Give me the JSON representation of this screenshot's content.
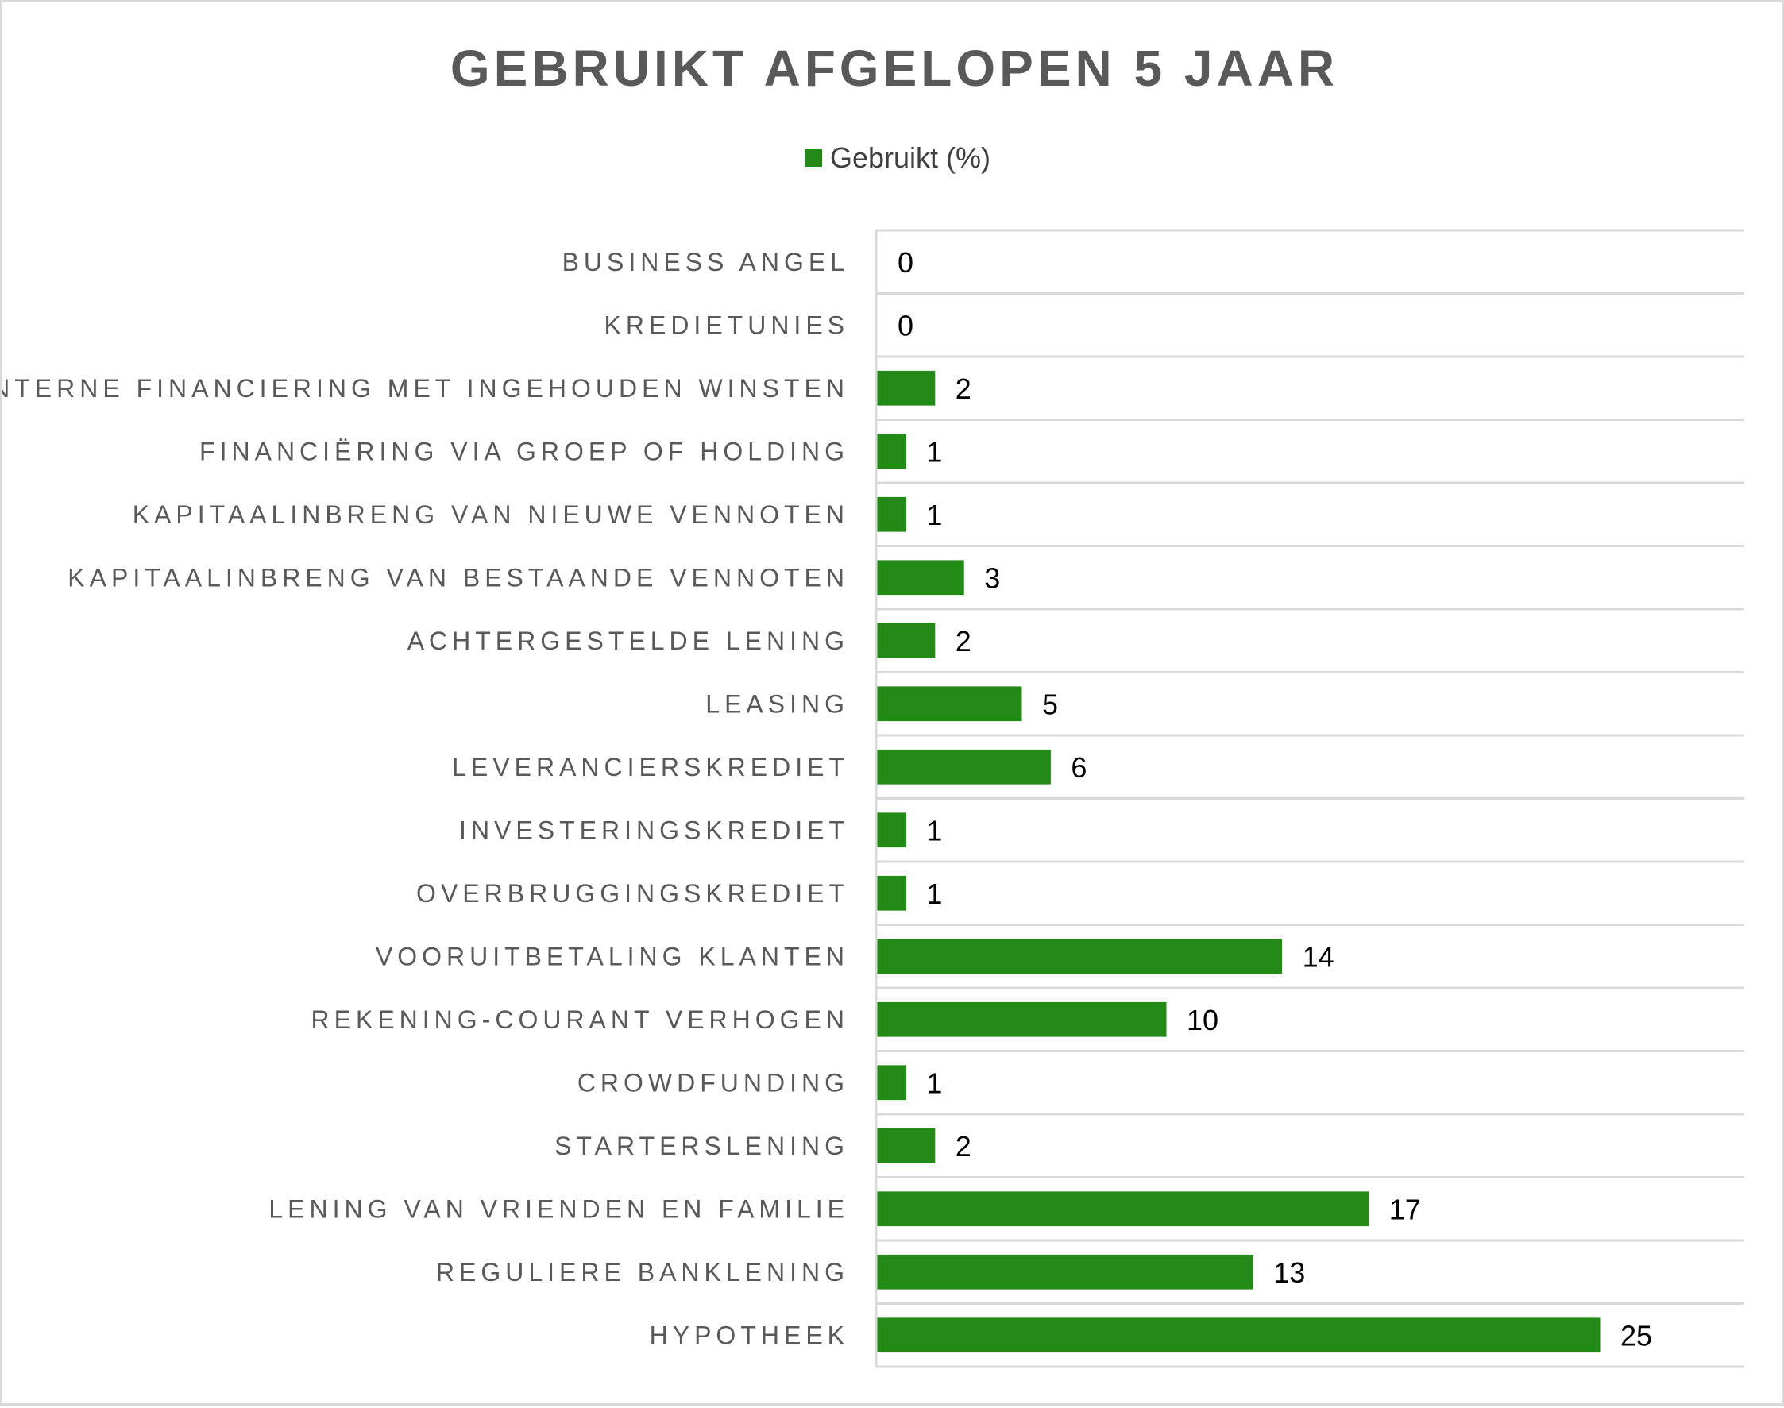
{
  "chart_data": {
    "type": "bar",
    "orientation": "horizontal",
    "title": "GEBRUIKT AFGELOPEN 5 JAAR",
    "legend": {
      "position": "top",
      "entries": [
        "Gebruikt (%)"
      ]
    },
    "categories": [
      "BUSINESS ANGEL",
      "KREDIETUNIES",
      "INTERNE FINANCIERING MET INGEHOUDEN WINSTEN",
      "FINANCIËRING VIA GROEP OF HOLDING",
      "KAPITAALINBRENG VAN NIEUWE VENNOTEN",
      "KAPITAALINBRENG VAN BESTAANDE VENNOTEN",
      "ACHTERGESTELDE LENING",
      "LEASING",
      "LEVERANCIERSKREDIET",
      "INVESTERINGSKREDIET",
      "OVERBRUGGINGSKREDIET",
      "VOORUITBETALING KLANTEN",
      "REKENING-COURANT VERHOGEN",
      "CROWDFUNDING",
      "STARTERSLENING",
      "LENING VAN VRIENDEN EN FAMILIE",
      "REGULIERE BANKLENING",
      "HYPOTHEEK"
    ],
    "series": [
      {
        "name": "Gebruikt (%)",
        "color": "#238a17",
        "values": [
          0,
          0,
          2,
          1,
          1,
          3,
          2,
          5,
          6,
          1,
          1,
          14,
          10,
          1,
          2,
          17,
          13,
          25
        ]
      }
    ],
    "xlim": [
      0,
      30
    ],
    "grid": true,
    "data_labels": true
  }
}
